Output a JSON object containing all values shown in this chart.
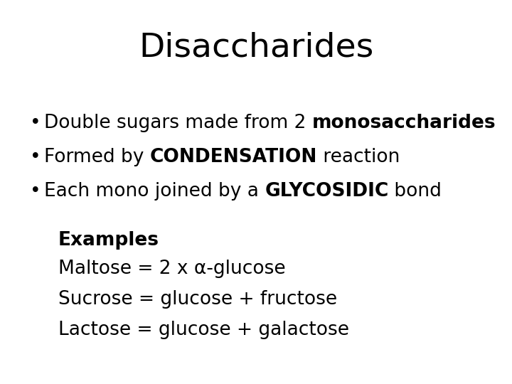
{
  "title": "Disaccharides",
  "title_fontsize": 34,
  "background_color": "#ffffff",
  "text_color": "#000000",
  "bullet_points": [
    {
      "prefix": "Double sugars made from 2 ",
      "bold": "monosaccharides",
      "suffix": ""
    },
    {
      "prefix": "Formed by ",
      "bold": "CONDENSATION",
      "suffix": " reaction"
    },
    {
      "prefix": "Each mono joined by a ",
      "bold": "GLYCOSIDIC",
      "suffix": " bond"
    }
  ],
  "examples_header": "Examples",
  "examples_lines": [
    "Maltose = 2 x α-glucose",
    "Sucrose = glucose + fructose",
    "Lactose = glucose + galactose"
  ],
  "bullet_fontsize": 19,
  "examples_fontsize": 19
}
